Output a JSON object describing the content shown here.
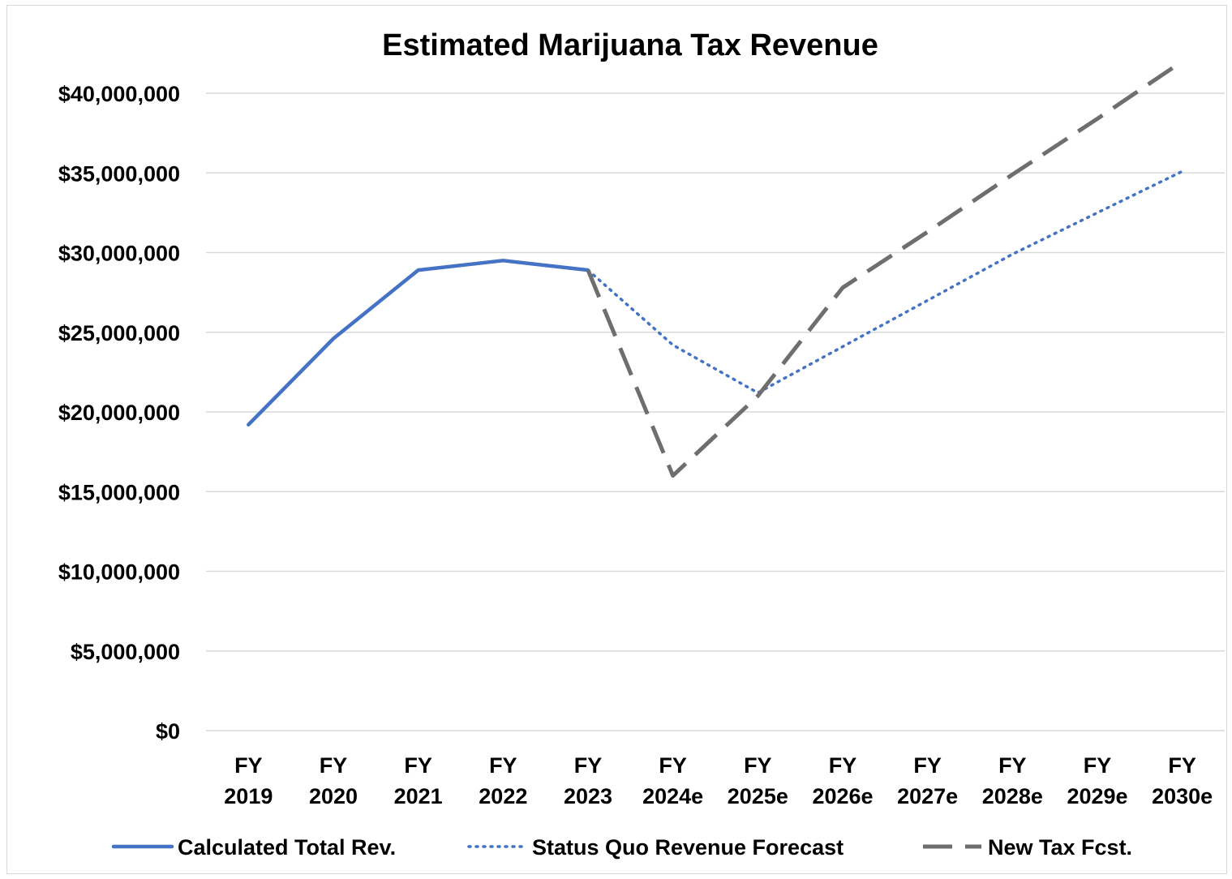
{
  "chart_data": {
    "type": "line",
    "title": "Estimated Marijuana Tax Revenue",
    "xlabel": "",
    "ylabel": "",
    "categories": [
      [
        "FY",
        "2019"
      ],
      [
        "FY",
        "2020"
      ],
      [
        "FY",
        "2021"
      ],
      [
        "FY",
        "2022"
      ],
      [
        "FY",
        "2023"
      ],
      [
        "FY",
        "2024e"
      ],
      [
        "FY",
        "2025e"
      ],
      [
        "FY",
        "2026e"
      ],
      [
        "FY",
        "2027e"
      ],
      [
        "FY",
        "2028e"
      ],
      [
        "FY",
        "2029e"
      ],
      [
        "FY",
        "2030e"
      ]
    ],
    "ylim": [
      0,
      40000000
    ],
    "yticks": [
      0,
      5000000,
      10000000,
      15000000,
      20000000,
      25000000,
      30000000,
      35000000,
      40000000
    ],
    "ytick_labels": [
      "$0",
      "$5,000,000",
      "$10,000,000",
      "$15,000,000",
      "$20,000,000",
      "$25,000,000",
      "$30,000,000",
      "$35,000,000",
      "$40,000,000"
    ],
    "grid": true,
    "legend_position": "bottom",
    "series": [
      {
        "name": "Calculated Total Rev.",
        "color": "#4472c4",
        "style": "solid",
        "values": [
          19200000,
          24600000,
          28900000,
          29500000,
          28900000,
          null,
          null,
          null,
          null,
          null,
          null,
          null
        ]
      },
      {
        "name": "Status Quo Revenue Forecast",
        "color": "#4472c4",
        "style": "dotted",
        "values": [
          null,
          null,
          null,
          null,
          28900000,
          24200000,
          21200000,
          24100000,
          27000000,
          29900000,
          32500000,
          35100000
        ]
      },
      {
        "name": "New Tax Fcst.",
        "color": "#6e6e6e",
        "style": "dashed",
        "values": [
          null,
          null,
          null,
          null,
          28900000,
          16000000,
          21000000,
          27800000,
          31300000,
          34900000,
          38400000,
          42000000
        ]
      }
    ]
  }
}
